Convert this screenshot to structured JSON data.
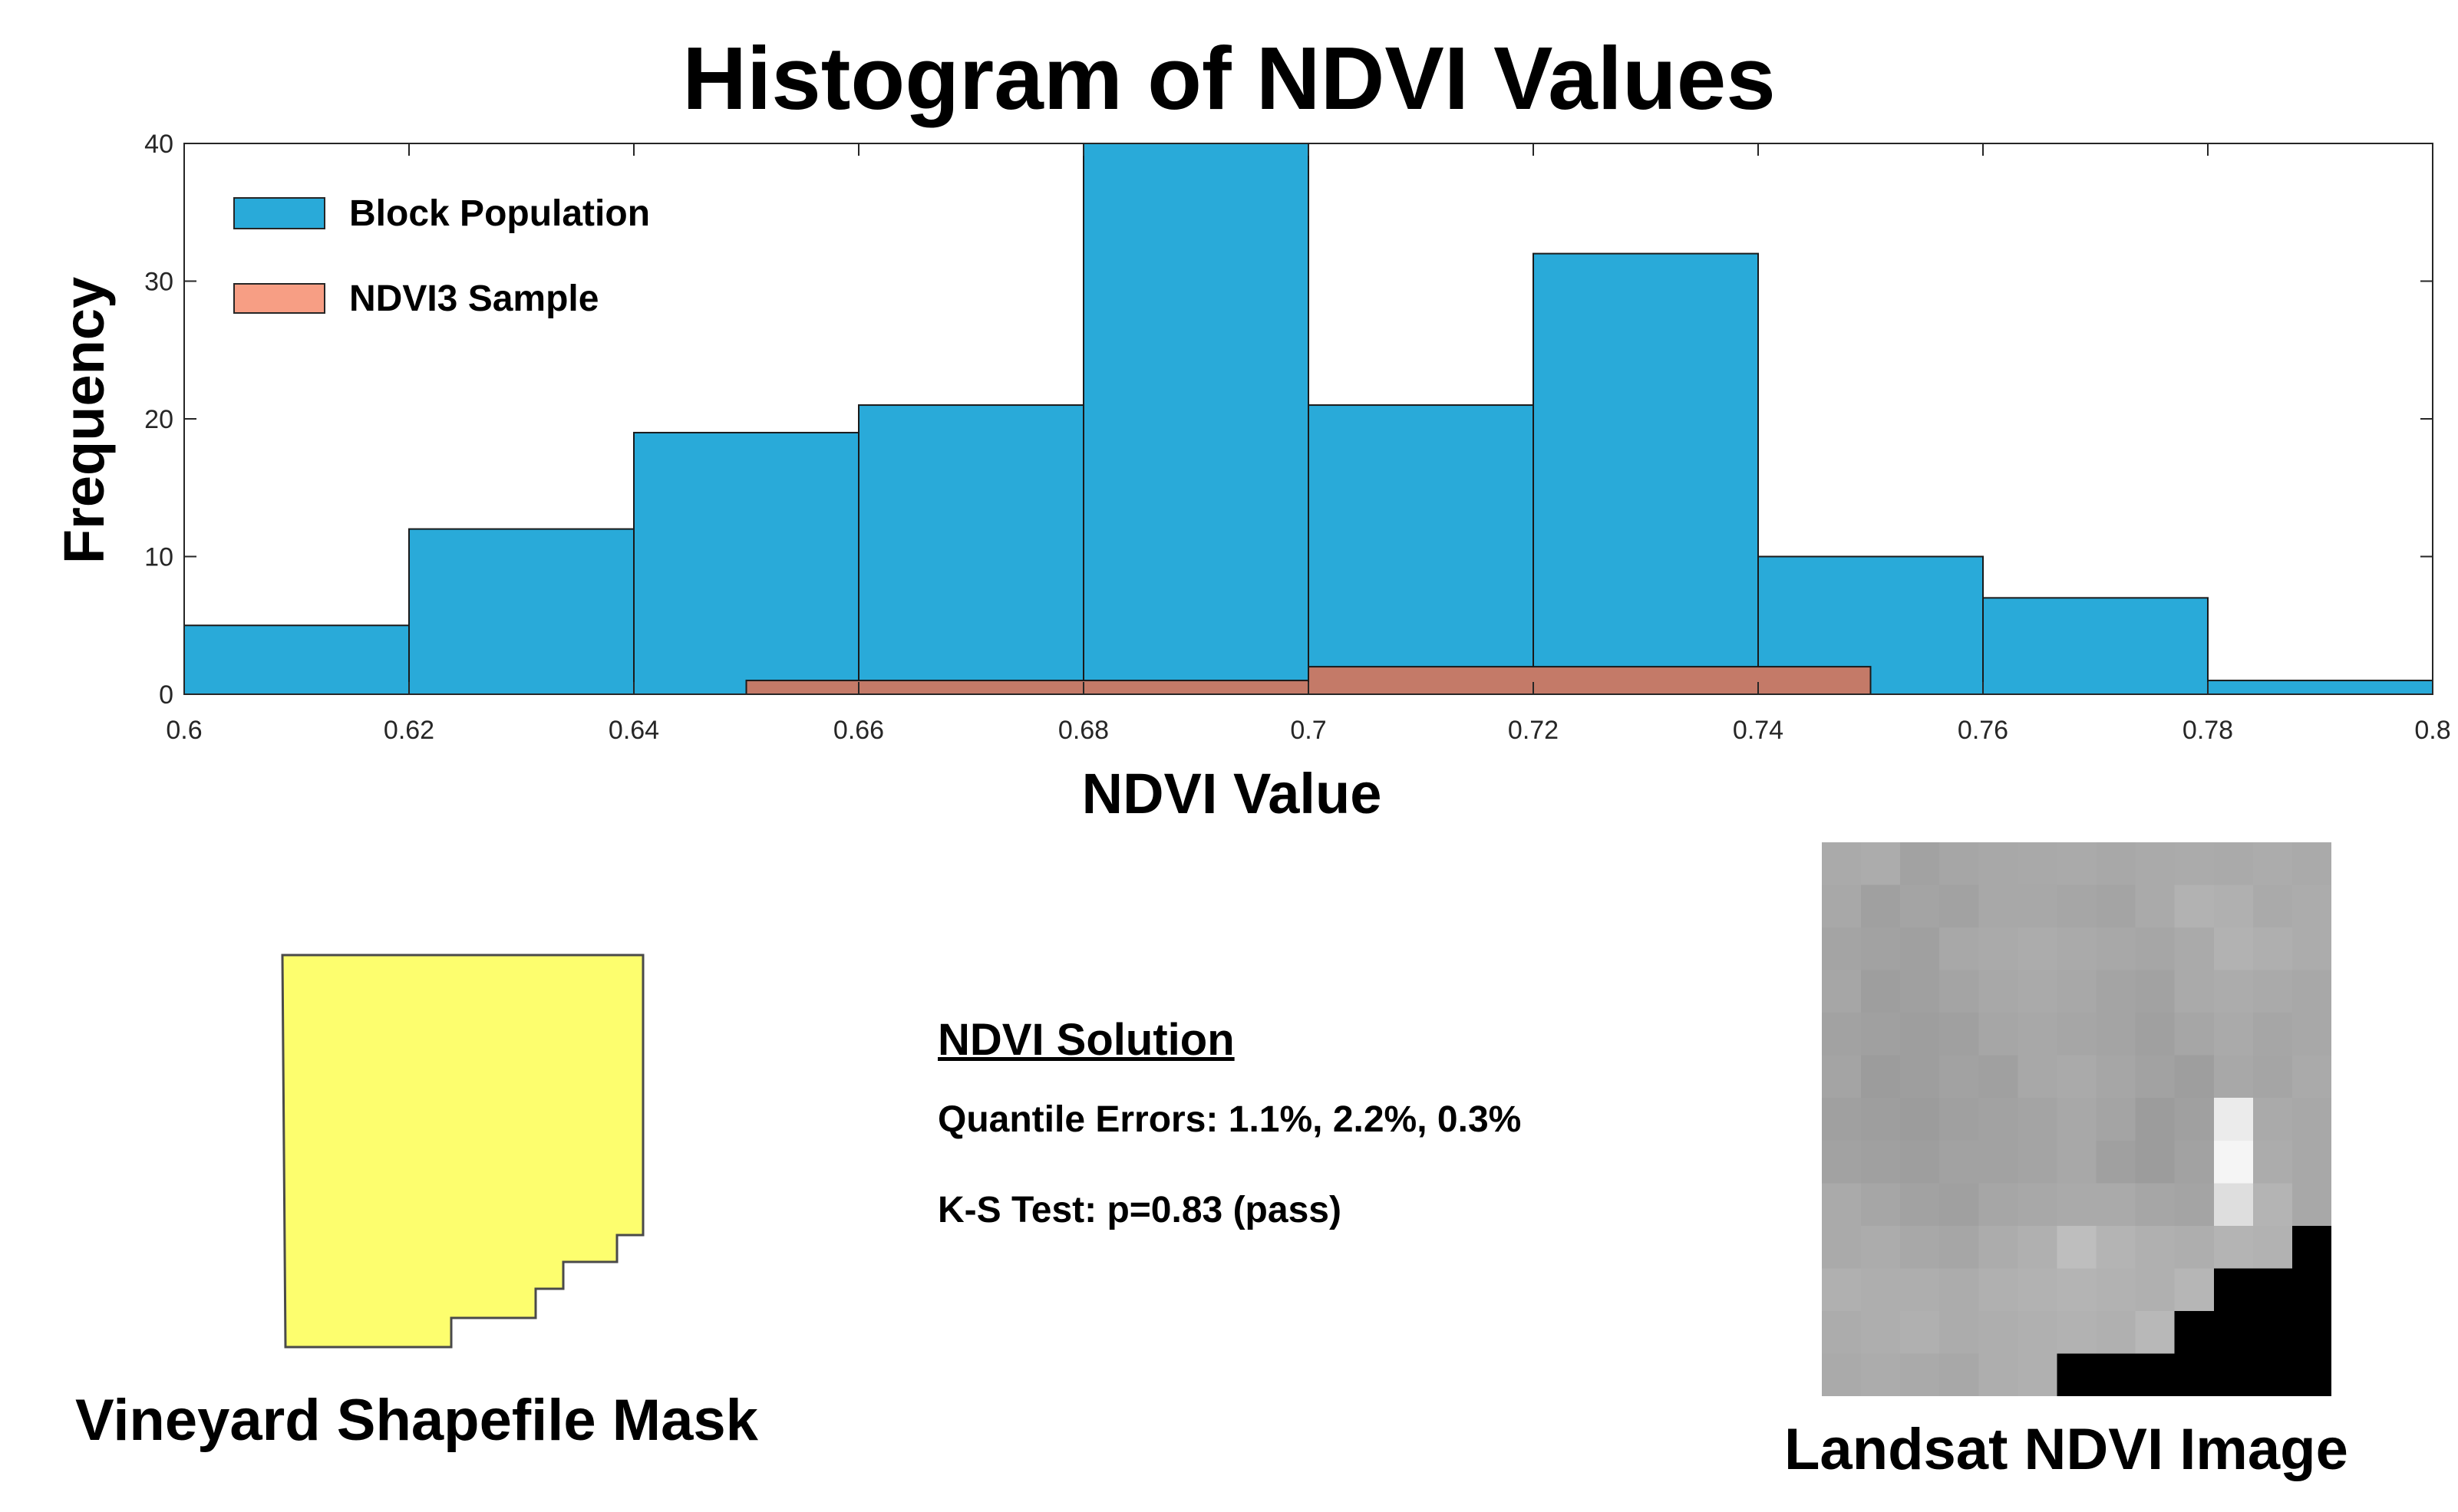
{
  "chart_data": {
    "type": "bar",
    "title": "Histogram of NDVI Values",
    "xlabel": "NDVI Value",
    "ylabel": "Frequency",
    "xlim": [
      0.6,
      0.8
    ],
    "ylim": [
      0,
      40
    ],
    "x_ticks": [
      "0.6",
      "0.62",
      "0.64",
      "0.66",
      "0.68",
      "0.7",
      "0.72",
      "0.74",
      "0.76",
      "0.78",
      "0.8"
    ],
    "y_ticks": [
      "0",
      "10",
      "20",
      "30",
      "40"
    ],
    "legend_position": "top-left",
    "grid": false,
    "series": [
      {
        "name": "Block Population",
        "color": "#29aad9",
        "bin_edges": [
          0.6,
          0.62,
          0.64,
          0.66,
          0.68,
          0.7,
          0.72,
          0.74,
          0.76,
          0.78,
          0.8
        ],
        "values": [
          5,
          12,
          19,
          21,
          40,
          21,
          32,
          10,
          7,
          1
        ]
      },
      {
        "name": "NDVI3 Sample",
        "color": "#c47a68",
        "legend_color": "#f79e84",
        "bin_edges": [
          0.65,
          0.7,
          0.75
        ],
        "values": [
          1,
          2
        ]
      }
    ]
  },
  "mask": {
    "caption": "Vineyard Shapefile Mask",
    "fill": "#fdfe6e"
  },
  "solution": {
    "title": "NDVI Solution",
    "quantile_errors": "Quantile Errors: 1.1%, 2.2%, 0.3%",
    "ks_test": "K-S Test: p=0.83 (pass)"
  },
  "landsat": {
    "caption": "Landsat NDVI Image",
    "pixels": [
      [
        170,
        172,
        162,
        166,
        168,
        169,
        170,
        168,
        170,
        171,
        170,
        172,
        170
      ],
      [
        168,
        160,
        164,
        162,
        168,
        168,
        166,
        164,
        170,
        178,
        176,
        170,
        172
      ],
      [
        164,
        162,
        160,
        168,
        170,
        172,
        170,
        168,
        166,
        170,
        178,
        175,
        172
      ],
      [
        166,
        158,
        160,
        164,
        168,
        170,
        168,
        164,
        162,
        170,
        172,
        170,
        168
      ],
      [
        162,
        160,
        158,
        160,
        166,
        168,
        166,
        164,
        160,
        166,
        170,
        166,
        168
      ],
      [
        164,
        156,
        158,
        162,
        160,
        168,
        170,
        166,
        162,
        158,
        168,
        165,
        170
      ],
      [
        160,
        158,
        156,
        160,
        162,
        164,
        168,
        164,
        156,
        160,
        235,
        170,
        168
      ],
      [
        162,
        160,
        158,
        162,
        162,
        164,
        168,
        160,
        156,
        162,
        245,
        172,
        168
      ],
      [
        170,
        166,
        162,
        160,
        166,
        168,
        170,
        170,
        166,
        164,
        222,
        180,
        168
      ],
      [
        170,
        172,
        168,
        166,
        172,
        176,
        190,
        180,
        176,
        174,
        180,
        178,
        0
      ],
      [
        176,
        174,
        174,
        172,
        176,
        178,
        180,
        178,
        176,
        182,
        0,
        0,
        0
      ],
      [
        172,
        174,
        176,
        172,
        174,
        176,
        178,
        176,
        184,
        0,
        0,
        0,
        0
      ],
      [
        170,
        172,
        170,
        168,
        174,
        176,
        0,
        0,
        0,
        0,
        0,
        0,
        0
      ]
    ]
  }
}
